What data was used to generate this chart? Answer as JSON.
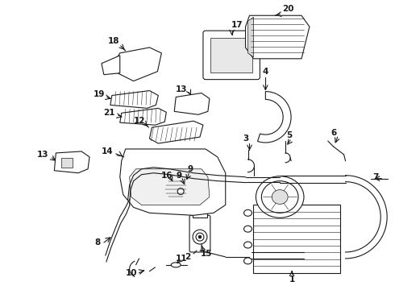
{
  "bg_color": "#ffffff",
  "fg_color": "#1a1a1a",
  "lw": 0.8
}
